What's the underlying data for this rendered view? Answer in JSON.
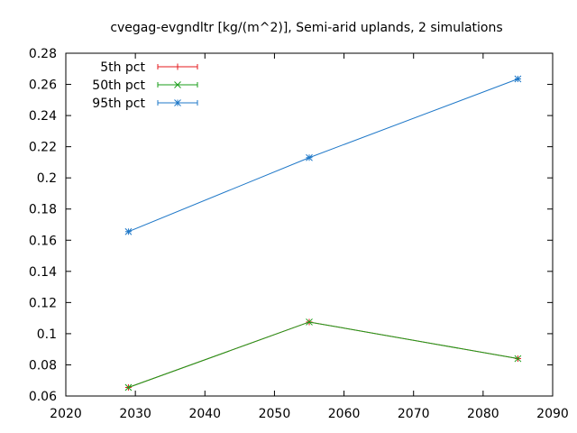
{
  "chart_data": {
    "type": "line",
    "title": "cvegag-evgndltr [kg/(m^2)], Semi-arid uplands, 2 simulations",
    "xlim": [
      2020,
      2090
    ],
    "ylim": [
      0.06,
      0.28
    ],
    "xticks": [
      2020,
      2030,
      2040,
      2050,
      2060,
      2070,
      2080,
      2090
    ],
    "yticks": [
      "0.06",
      "0.08",
      "0.1",
      "0.12",
      "0.14",
      "0.16",
      "0.18",
      "0.2",
      "0.22",
      "0.24",
      "0.26",
      "0.28"
    ],
    "grid": false,
    "legend_position": "top-left",
    "x": [
      2029,
      2055,
      2085
    ],
    "series": [
      {
        "name": "5th pct",
        "color": "#e41a1c",
        "marker": "plus",
        "values": [
          0.0655,
          0.1075,
          0.084
        ]
      },
      {
        "name": "50th pct",
        "color": "#1a9e1a",
        "marker": "cross",
        "values": [
          0.0655,
          0.1075,
          0.084
        ]
      },
      {
        "name": "95th pct",
        "color": "#1f78c8",
        "marker": "star",
        "values": [
          0.1655,
          0.213,
          0.2635
        ]
      }
    ]
  }
}
